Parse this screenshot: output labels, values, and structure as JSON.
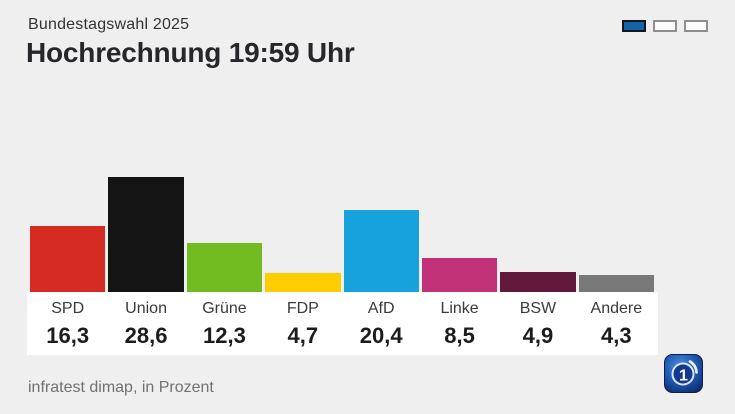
{
  "header": {
    "kicker": "Bundestagswahl 2025",
    "title": "Hochrechnung 19:59 Uhr"
  },
  "pagination": {
    "count": 3,
    "active_index": 0
  },
  "chart_data": {
    "type": "bar",
    "title": "Hochrechnung 19:59 Uhr",
    "subtitle": "Bundestagswahl 2025",
    "categories": [
      "SPD",
      "Union",
      "Grüne",
      "FDP",
      "AfD",
      "Linke",
      "BSW",
      "Andere"
    ],
    "values": [
      16.3,
      28.6,
      12.3,
      4.7,
      20.4,
      8.5,
      4.9,
      4.3
    ],
    "display_values": [
      "16,3",
      "28,6",
      "12,3",
      "4,7",
      "20,4",
      "8,5",
      "4,9",
      "4,3"
    ],
    "bar_colors": [
      "#d62b22",
      "#141414",
      "#72bb20",
      "#ffcc00",
      "#18a2dc",
      "#c03178",
      "#61183a",
      "#787878"
    ],
    "unit": "Prozent",
    "source": "infratest dimap",
    "ylim": [
      0,
      30
    ],
    "grid": false,
    "legend": "none"
  },
  "footer": {
    "source_note": "infratest dimap, in Prozent"
  },
  "logo": {
    "name": "ard-tagesschau-logo"
  },
  "colors": {
    "background": "#efefef",
    "panel": "#ffffff",
    "pager_active_fill": "#1563a8",
    "pager_active_border": "#13161f",
    "pager_inactive_border": "#8f8f8f"
  }
}
